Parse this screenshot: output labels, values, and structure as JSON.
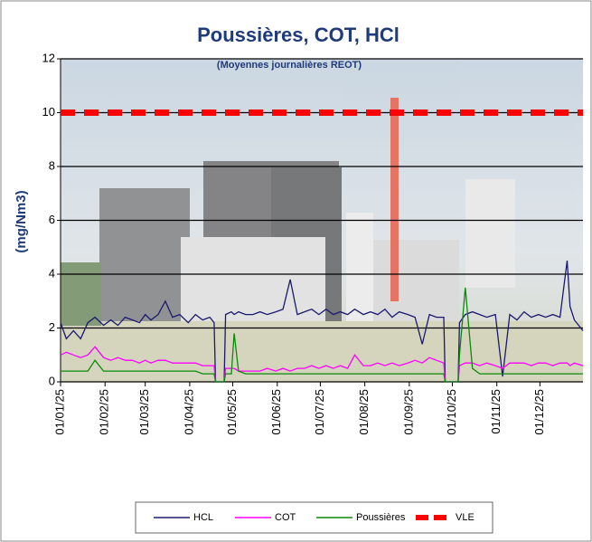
{
  "chart_data": {
    "type": "line",
    "title": "Poussières, COT, HCl",
    "subtitle": "(Moyennes journalières REOT)",
    "y_label": "(mg/Nm3)",
    "x": [
      "01/01/25",
      "05/01/25",
      "10/01/25",
      "15/01/25",
      "20/01/25",
      "25/01/25",
      "31/01/25",
      "05/02/25",
      "10/02/25",
      "15/02/25",
      "20/02/25",
      "25/02/25",
      "01/03/25",
      "05/03/25",
      "10/03/25",
      "15/03/25",
      "20/03/25",
      "25/03/25",
      "31/03/25",
      "05/04/25",
      "10/04/25",
      "15/04/25",
      "18/04/25",
      "19/04/25",
      "25/04/25",
      "26/04/25",
      "30/04/25",
      "02/05/25",
      "05/05/25",
      "10/05/25",
      "15/05/25",
      "20/05/25",
      "25/05/25",
      "31/05/25",
      "05/06/25",
      "10/06/25",
      "15/06/25",
      "20/06/25",
      "25/06/25",
      "30/06/25",
      "05/07/25",
      "10/07/25",
      "15/07/25",
      "20/07/25",
      "25/07/25",
      "31/07/25",
      "05/08/25",
      "10/08/25",
      "15/08/25",
      "20/08/25",
      "25/08/25",
      "31/08/25",
      "05/09/25",
      "10/09/25",
      "15/09/25",
      "20/09/25",
      "25/09/25",
      "26/09/25",
      "05/10/25",
      "06/10/25",
      "10/10/25",
      "15/10/25",
      "20/10/25",
      "25/10/25",
      "31/10/25",
      "05/11/25",
      "10/11/25",
      "15/11/25",
      "20/11/25",
      "25/11/25",
      "30/11/25",
      "05/12/25",
      "10/12/25",
      "15/12/25",
      "20/12/25",
      "22/12/25",
      "25/12/25",
      "31/12/25"
    ],
    "xlim": [
      "01/01/25",
      "31/12/25"
    ],
    "xticks": [
      "01/01/25",
      "01/02/25",
      "01/03/25",
      "01/04/25",
      "01/05/25",
      "01/06/25",
      "01/07/25",
      "01/08/25",
      "01/09/25",
      "01/10/25",
      "01/11/25",
      "01/12/25"
    ],
    "ylim": [
      0,
      12
    ],
    "yticks": [
      0,
      2,
      4,
      6,
      8,
      10,
      12
    ],
    "grid": true,
    "series": [
      {
        "name": "HCL",
        "color": "#1a1a6e",
        "width": 1.3,
        "values": [
          2.2,
          1.6,
          1.9,
          1.6,
          2.2,
          2.4,
          2.1,
          2.3,
          2.1,
          2.4,
          2.3,
          2.2,
          2.5,
          2.3,
          2.5,
          3.0,
          2.4,
          2.5,
          2.2,
          2.5,
          2.3,
          2.4,
          2.2,
          0,
          0,
          2.5,
          2.6,
          2.5,
          2.6,
          2.5,
          2.5,
          2.6,
          2.5,
          2.6,
          2.7,
          3.8,
          2.5,
          2.6,
          2.7,
          2.5,
          2.7,
          2.5,
          2.6,
          2.5,
          2.7,
          2.5,
          2.6,
          2.5,
          2.7,
          2.4,
          2.6,
          2.5,
          2.4,
          1.4,
          2.5,
          2.4,
          2.4,
          0,
          0,
          2.2,
          2.5,
          2.6,
          2.5,
          2.4,
          2.5,
          0.2,
          2.5,
          2.3,
          2.6,
          2.4,
          2.5,
          2.4,
          2.5,
          2.4,
          4.5,
          2.8,
          2.3,
          1.9
        ]
      },
      {
        "name": "COT",
        "color": "#ff00ff",
        "width": 1.3,
        "values": [
          1.0,
          1.1,
          1.0,
          0.9,
          1.0,
          1.3,
          0.9,
          0.8,
          0.9,
          0.8,
          0.8,
          0.7,
          0.8,
          0.7,
          0.8,
          0.8,
          0.7,
          0.7,
          0.7,
          0.7,
          0.6,
          0.6,
          0.6,
          0,
          0,
          0.5,
          0.5,
          0.5,
          0.4,
          0.4,
          0.4,
          0.4,
          0.5,
          0.4,
          0.5,
          0.4,
          0.5,
          0.5,
          0.6,
          0.5,
          0.6,
          0.5,
          0.6,
          0.5,
          1.0,
          0.6,
          0.6,
          0.7,
          0.6,
          0.7,
          0.6,
          0.7,
          0.8,
          0.7,
          0.9,
          0.8,
          0.7,
          0,
          0,
          0.6,
          0.7,
          0.7,
          0.6,
          0.7,
          0.6,
          0.5,
          0.7,
          0.7,
          0.7,
          0.6,
          0.7,
          0.7,
          0.6,
          0.7,
          0.7,
          0.6,
          0.7,
          0.6
        ]
      },
      {
        "name": "Poussières",
        "color": "#0a8a0a",
        "width": 1.3,
        "values": [
          0.4,
          0.4,
          0.4,
          0.4,
          0.4,
          0.8,
          0.4,
          0.4,
          0.4,
          0.4,
          0.4,
          0.4,
          0.4,
          0.4,
          0.4,
          0.4,
          0.4,
          0.4,
          0.4,
          0.4,
          0.3,
          0.3,
          0.3,
          0,
          0,
          0.3,
          0.3,
          1.8,
          0.4,
          0.3,
          0.3,
          0.3,
          0.3,
          0.3,
          0.3,
          0.3,
          0.3,
          0.3,
          0.3,
          0.3,
          0.3,
          0.3,
          0.3,
          0.3,
          0.3,
          0.3,
          0.3,
          0.3,
          0.3,
          0.3,
          0.3,
          0.3,
          0.3,
          0.3,
          0.3,
          0.3,
          0.3,
          0,
          0,
          1.0,
          3.5,
          0.5,
          0.3,
          0.3,
          0.3,
          0.3,
          0.3,
          0.3,
          0.3,
          0.3,
          0.3,
          0.3,
          0.3,
          0.3,
          0.3,
          0.3,
          0.3,
          0.3
        ]
      },
      {
        "name": "VLE",
        "color": "#ff0000",
        "width": 7,
        "dash": true,
        "x": [
          "01/01/25",
          "31/12/25"
        ],
        "values": [
          10,
          10
        ]
      }
    ]
  }
}
